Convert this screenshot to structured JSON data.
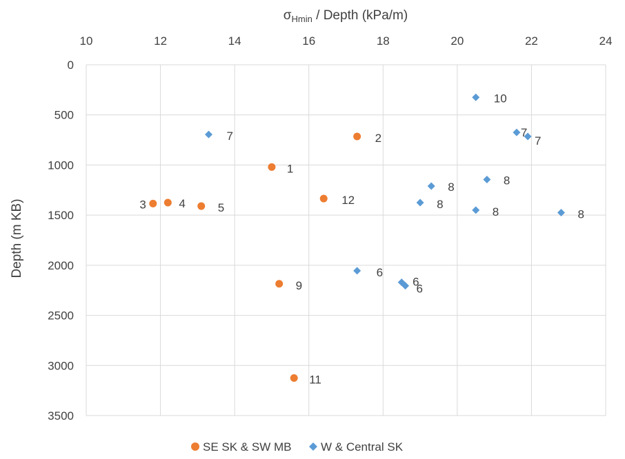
{
  "chart_data": {
    "type": "scatter",
    "xlabel_main": "σ",
    "xlabel_sub": "Hmin",
    "xlabel_rest": " / Depth (kPa/m)",
    "ylabel": "Depth (m KB)",
    "xlim": [
      10,
      24
    ],
    "ylim": [
      0,
      3500
    ],
    "y_inverted": true,
    "x_axis_position": "top",
    "x_ticks": [
      10,
      12,
      14,
      16,
      18,
      20,
      22,
      24
    ],
    "y_ticks": [
      0,
      500,
      1000,
      1500,
      2000,
      2500,
      3000,
      3500
    ],
    "grid": true,
    "legend_position": "bottom",
    "series": [
      {
        "name": "SE SK & SW MB",
        "marker": "circle",
        "color": "#ED7D31",
        "points": [
          {
            "x": 15.0,
            "y": 1020,
            "label": "1"
          },
          {
            "x": 17.3,
            "y": 715,
            "label": "2"
          },
          {
            "x": 11.8,
            "y": 1385,
            "label": "3"
          },
          {
            "x": 12.2,
            "y": 1375,
            "label": "4"
          },
          {
            "x": 13.1,
            "y": 1410,
            "label": "5"
          },
          {
            "x": 15.2,
            "y": 2185,
            "label": "9"
          },
          {
            "x": 15.6,
            "y": 3125,
            "label": "11"
          },
          {
            "x": 16.4,
            "y": 1335,
            "label": "12"
          }
        ]
      },
      {
        "name": "W & Central SK",
        "marker": "diamond",
        "color": "#5B9BD5",
        "points": [
          {
            "x": 13.3,
            "y": 695,
            "label": "7"
          },
          {
            "x": 20.5,
            "y": 325,
            "label": "10"
          },
          {
            "x": 21.6,
            "y": 675,
            "label": "7"
          },
          {
            "x": 21.9,
            "y": 715,
            "label": "7"
          },
          {
            "x": 20.8,
            "y": 1145,
            "label": "8"
          },
          {
            "x": 19.3,
            "y": 1210,
            "label": "8"
          },
          {
            "x": 19.0,
            "y": 1375,
            "label": "8"
          },
          {
            "x": 20.5,
            "y": 1450,
            "label": "8"
          },
          {
            "x": 22.8,
            "y": 1475,
            "label": "8"
          },
          {
            "x": 17.3,
            "y": 2055,
            "label": "6"
          },
          {
            "x": 18.5,
            "y": 2170,
            "label": "6"
          },
          {
            "x": 18.6,
            "y": 2205,
            "label": "6"
          }
        ]
      }
    ]
  }
}
